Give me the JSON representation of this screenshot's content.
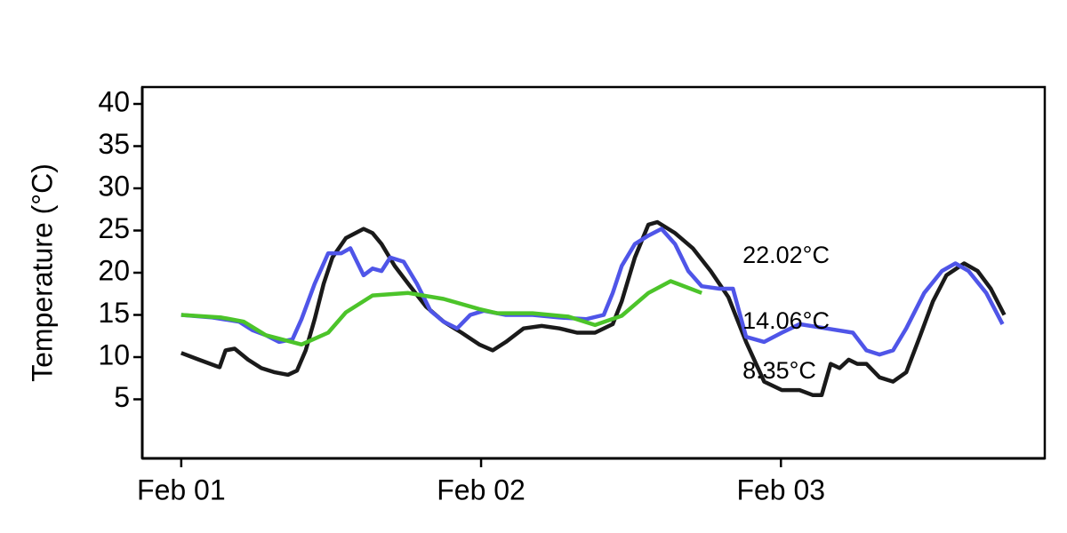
{
  "chart_data": {
    "type": "line",
    "y_label": "Temperature (°C)",
    "xlim": [
      -0.13,
      2.88
    ],
    "xticks": [
      {
        "value": 0,
        "label": "Feb 01"
      },
      {
        "value": 1,
        "label": "Feb 02"
      },
      {
        "value": 2,
        "label": "Feb 03"
      }
    ],
    "ylim": [
      -2,
      42
    ],
    "yticks": [
      5,
      10,
      15,
      20,
      25,
      30,
      35,
      40
    ],
    "grid": false,
    "series": [
      {
        "color": "#1a1a1a",
        "x": [
          0,
          0.059,
          0.119,
          0.128,
          0.148,
          0.178,
          0.223,
          0.267,
          0.312,
          0.356,
          0.386,
          0.415,
          0.445,
          0.475,
          0.504,
          0.549,
          0.608,
          0.638,
          0.668,
          0.712,
          0.757,
          0.816,
          0.875,
          0.935,
          0.994,
          1.039,
          1.083,
          1.142,
          1.202,
          1.261,
          1.32,
          1.38,
          1.439,
          1.469,
          1.513,
          1.558,
          1.588,
          1.647,
          1.706,
          1.766,
          1.825,
          1.884,
          1.944,
          2.003,
          2.062,
          2.107,
          2.136,
          2.166,
          2.196,
          2.226,
          2.255,
          2.285,
          2.329,
          2.374,
          2.418,
          2.463,
          2.507,
          2.552,
          2.611,
          2.656,
          2.7,
          2.745
        ],
        "values": [
          10.5,
          9.7,
          8.9,
          8.8,
          10.8,
          11,
          9.7,
          8.7,
          8.2,
          7.9,
          8.4,
          10.8,
          14.5,
          18.7,
          21.8,
          24.1,
          25.2,
          24.7,
          23.4,
          20.8,
          18.7,
          16,
          14.2,
          12.9,
          11.5,
          10.8,
          11.8,
          13.4,
          13.7,
          13.4,
          12.9,
          12.9,
          13.9,
          16.6,
          21.8,
          25.7,
          26,
          24.7,
          22.9,
          20.2,
          17.1,
          11.8,
          7.1,
          6.1,
          6.1,
          5.5,
          5.5,
          9.2,
          8.7,
          9.7,
          9.2,
          9.2,
          7.6,
          7.1,
          8.2,
          12.4,
          16.6,
          19.7,
          21.1,
          20.2,
          18.1,
          15
        ]
      },
      {
        "color": "#4f55e8",
        "x": [
          0,
          0.104,
          0.193,
          0.237,
          0.282,
          0.326,
          0.371,
          0.401,
          0.445,
          0.49,
          0.534,
          0.564,
          0.608,
          0.638,
          0.668,
          0.697,
          0.742,
          0.786,
          0.831,
          0.875,
          0.92,
          0.964,
          1.009,
          1.083,
          1.172,
          1.261,
          1.35,
          1.409,
          1.439,
          1.469,
          1.513,
          1.558,
          1.602,
          1.647,
          1.691,
          1.736,
          1.795,
          1.84,
          1.884,
          1.944,
          2.003,
          2.062,
          2.151,
          2.24,
          2.285,
          2.329,
          2.374,
          2.418,
          2.478,
          2.537,
          2.582,
          2.626,
          2.685,
          2.739
        ],
        "values": [
          15,
          14.7,
          14.2,
          13.2,
          12.6,
          11.8,
          12.1,
          14.5,
          18.7,
          22.3,
          22.3,
          22.9,
          19.7,
          20.5,
          20.2,
          21.8,
          21.3,
          18.7,
          15.5,
          14.2,
          13.4,
          15,
          15.5,
          15,
          15,
          14.7,
          14.5,
          15,
          17.6,
          20.8,
          23.4,
          24.4,
          25.2,
          23.4,
          20.2,
          18.4,
          18.1,
          18.1,
          12.4,
          11.8,
          12.9,
          13.9,
          13.4,
          12.9,
          10.8,
          10.3,
          10.8,
          13.4,
          17.6,
          20.2,
          21.1,
          20.2,
          17.6,
          13.9
        ]
      },
      {
        "color": "#4cc42a",
        "x": [
          0,
          0.134,
          0.208,
          0.282,
          0.401,
          0.49,
          0.549,
          0.638,
          0.757,
          0.875,
          0.994,
          1.053,
          1.172,
          1.291,
          1.38,
          1.469,
          1.558,
          1.632,
          1.736
        ],
        "values": [
          15,
          14.7,
          14.2,
          12.6,
          11.5,
          12.9,
          15.3,
          17.3,
          17.6,
          16.9,
          15.7,
          15.2,
          15.2,
          14.8,
          13.8,
          14.9,
          17.6,
          19,
          17.6
        ]
      }
    ],
    "annotations": [
      {
        "text": "22.02°C",
        "x": 1.872,
        "y": 21.9
      },
      {
        "text": "14.06°C",
        "x": 1.872,
        "y": 14.1
      },
      {
        "text": "8.35°C",
        "x": 1.872,
        "y": 8.2
      }
    ]
  }
}
